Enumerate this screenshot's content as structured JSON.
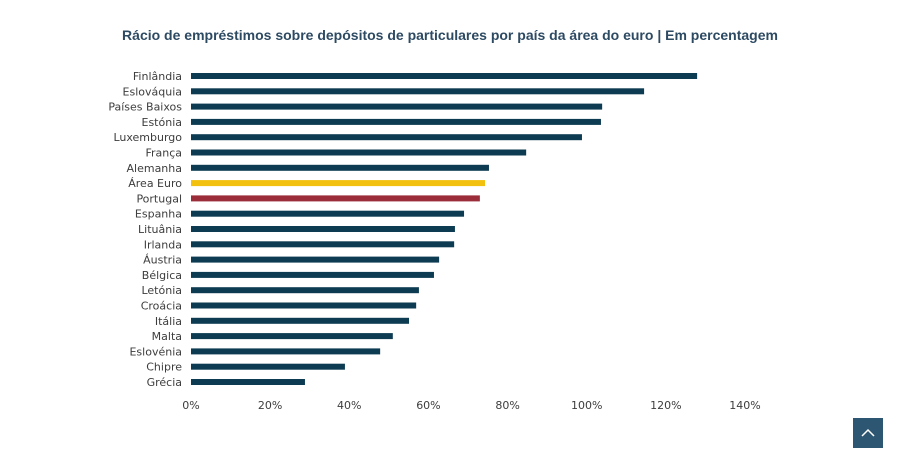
{
  "chart_data": {
    "type": "bar",
    "orientation": "horizontal",
    "title": "Rácio de empréstimos sobre depósitos de particulares por país da área do euro | Em percentagem",
    "xlabel": "",
    "ylabel": "",
    "xlim": [
      0,
      140
    ],
    "x_ticks": [
      0,
      20,
      40,
      60,
      80,
      100,
      120,
      140
    ],
    "x_tick_labels": [
      "0%",
      "20%",
      "40%",
      "60%",
      "80%",
      "100%",
      "120%",
      "140%"
    ],
    "grid": false,
    "categories": [
      "Finlândia",
      "Eslováquia",
      "Países Baixos",
      "Estónia",
      "Luxemburgo",
      "França",
      "Alemanha",
      "Área Euro",
      "Portugal",
      "Espanha",
      "Lituânia",
      "Irlanda",
      "Áustria",
      "Bélgica",
      "Letónia",
      "Croácia",
      "Itália",
      "Malta",
      "Eslovénia",
      "Chipre",
      "Grécia"
    ],
    "values": [
      127.9,
      114.5,
      103.9,
      103.6,
      98.8,
      84.7,
      75.3,
      74.3,
      73.0,
      69.0,
      66.7,
      66.5,
      62.7,
      61.4,
      57.6,
      56.9,
      55.1,
      51.0,
      47.8,
      38.9,
      28.8
    ],
    "colors": {
      "default": "#0d3b52",
      "Área Euro": "#f2c00f",
      "Portugal": "#9b2c3a"
    }
  },
  "ui": {
    "scroll_top_icon": "chevron-up-icon"
  }
}
